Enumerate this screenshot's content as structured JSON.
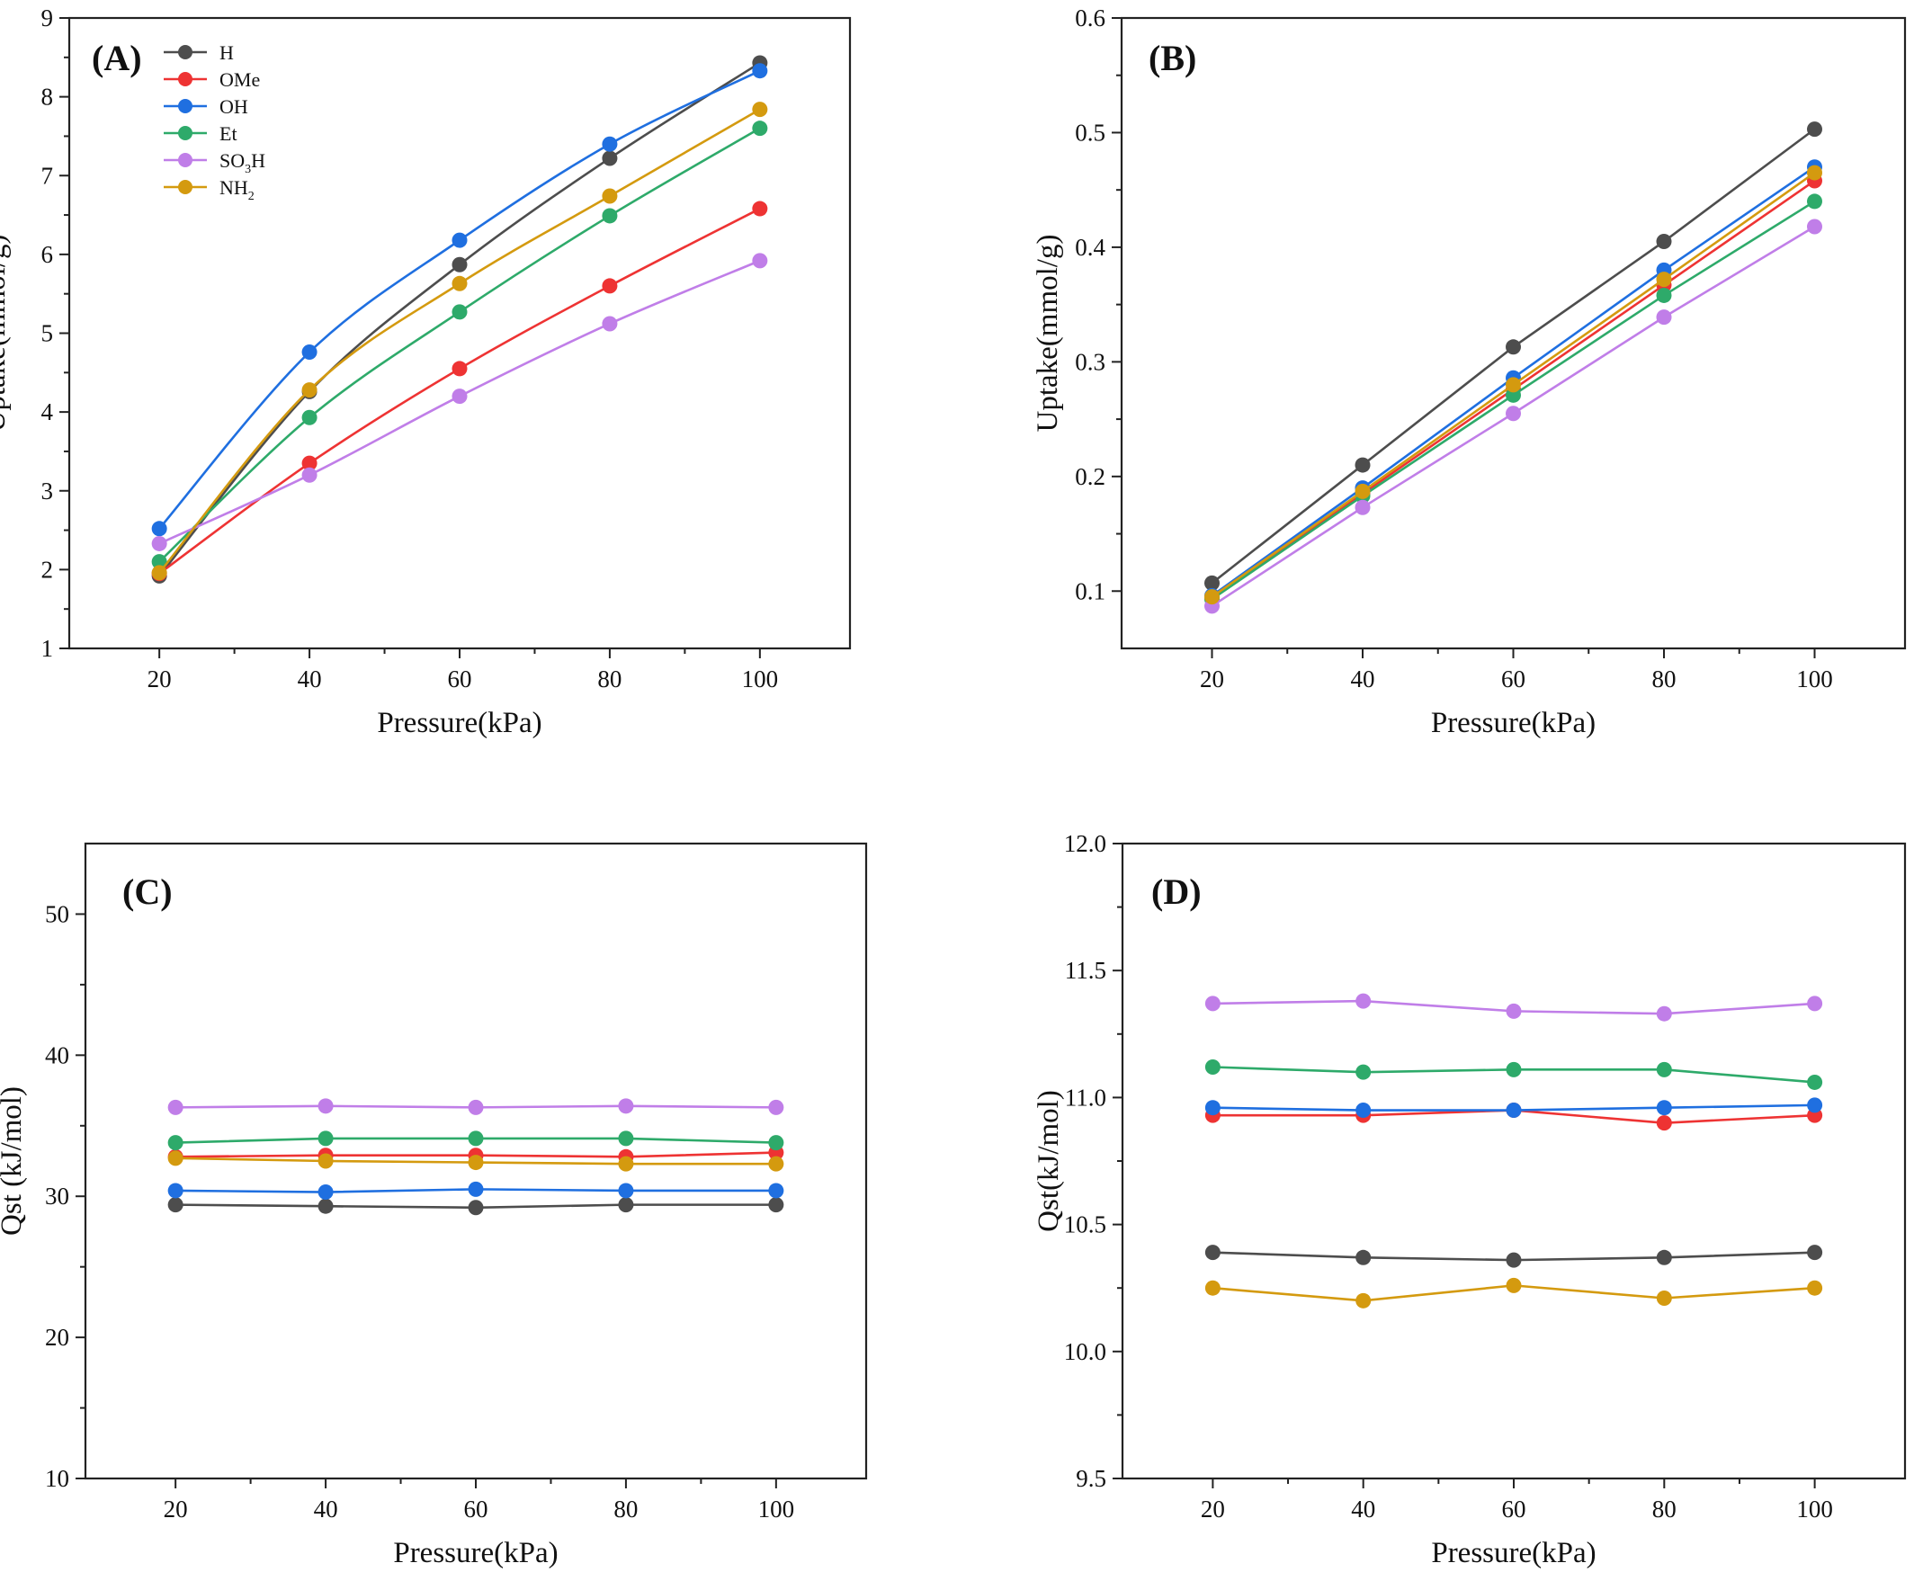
{
  "chart_data": [
    {
      "id": "A",
      "type": "line",
      "panel_label": "(A)",
      "xlabel": "Pressure(kPa)",
      "ylabel": "Uptake(mmol/g)",
      "smooth": true,
      "xlim": [
        8,
        112
      ],
      "ylim": [
        1,
        9
      ],
      "xticks": [
        20,
        40,
        60,
        80,
        100
      ],
      "xtick_labels": [
        "20",
        "40",
        "60",
        "80",
        "100"
      ],
      "yticks": [
        1,
        2,
        3,
        4,
        5,
        6,
        7,
        8,
        9
      ],
      "ytick_labels": [
        "1",
        "2",
        "3",
        "4",
        "5",
        "6",
        "7",
        "8",
        "9"
      ],
      "x": [
        20,
        40,
        60,
        80,
        100
      ],
      "legend": "top-left",
      "series": [
        {
          "name": "H",
          "label_parts": [
            "H"
          ],
          "color": "#4d4d4d",
          "values": [
            1.92,
            4.26,
            5.87,
            7.22,
            8.43
          ]
        },
        {
          "name": "OMe",
          "label_parts": [
            "OMe"
          ],
          "color": "#ee3333",
          "values": [
            1.95,
            3.35,
            4.55,
            5.6,
            6.58
          ]
        },
        {
          "name": "OH",
          "label_parts": [
            "OH"
          ],
          "color": "#1f6fe0",
          "values": [
            2.52,
            4.76,
            6.18,
            7.4,
            8.33
          ]
        },
        {
          "name": "Et",
          "label_parts": [
            "Et"
          ],
          "color": "#2eaa6a",
          "values": [
            2.1,
            3.93,
            5.27,
            6.49,
            7.6
          ]
        },
        {
          "name": "SO3H",
          "label_parts": [
            "SO",
            "3",
            "H"
          ],
          "color": "#c07ee8",
          "values": [
            2.33,
            3.2,
            4.2,
            5.12,
            5.92
          ]
        },
        {
          "name": "NH2",
          "label_parts": [
            "NH",
            "2",
            ""
          ],
          "color": "#d49a0f",
          "values": [
            1.96,
            4.28,
            5.63,
            6.74,
            7.84
          ]
        }
      ]
    },
    {
      "id": "B",
      "type": "line",
      "panel_label": "(B)",
      "xlabel": "Pressure(kPa)",
      "ylabel": "Uptake(mmol/g)",
      "smooth": false,
      "xlim": [
        8,
        112
      ],
      "ylim": [
        0.05,
        0.6
      ],
      "xticks": [
        20,
        40,
        60,
        80,
        100
      ],
      "xtick_labels": [
        "20",
        "40",
        "60",
        "80",
        "100"
      ],
      "yticks": [
        0.1,
        0.2,
        0.3,
        0.4,
        0.5,
        0.6
      ],
      "ytick_labels": [
        "0.1",
        "0.2",
        "0.3",
        "0.4",
        "0.5",
        "0.6"
      ],
      "x": [
        20,
        40,
        60,
        80,
        100
      ],
      "series": [
        {
          "name": "H",
          "color": "#4d4d4d",
          "values": [
            0.107,
            0.21,
            0.313,
            0.405,
            0.503
          ]
        },
        {
          "name": "OMe",
          "color": "#ee3333",
          "values": [
            0.094,
            0.185,
            0.276,
            0.367,
            0.458
          ]
        },
        {
          "name": "OH",
          "color": "#1f6fe0",
          "values": [
            0.096,
            0.19,
            0.286,
            0.38,
            0.47
          ]
        },
        {
          "name": "Et",
          "color": "#2eaa6a",
          "values": [
            0.093,
            0.183,
            0.271,
            0.358,
            0.44
          ]
        },
        {
          "name": "SO3H",
          "color": "#c07ee8",
          "values": [
            0.087,
            0.173,
            0.255,
            0.339,
            0.418
          ]
        },
        {
          "name": "NH2",
          "color": "#d49a0f",
          "values": [
            0.095,
            0.187,
            0.28,
            0.372,
            0.465
          ]
        }
      ]
    },
    {
      "id": "C",
      "type": "line",
      "panel_label": "(C)",
      "xlabel": "Pressure(kPa)",
      "ylabel": "Qst (kJ/mol)",
      "smooth": false,
      "xlim": [
        8,
        112
      ],
      "ylim": [
        10,
        55
      ],
      "xticks": [
        20,
        40,
        60,
        80,
        100
      ],
      "xtick_labels": [
        "20",
        "40",
        "60",
        "80",
        "100"
      ],
      "yticks": [
        10,
        20,
        30,
        40,
        50
      ],
      "ytick_labels": [
        "10",
        "20",
        "30",
        "40",
        "50"
      ],
      "x": [
        20,
        40,
        60,
        80,
        100
      ],
      "series": [
        {
          "name": "H",
          "color": "#4d4d4d",
          "values": [
            29.4,
            29.3,
            29.2,
            29.4,
            29.4
          ]
        },
        {
          "name": "OMe",
          "color": "#ee3333",
          "values": [
            32.8,
            32.9,
            32.9,
            32.8,
            33.1
          ]
        },
        {
          "name": "OH",
          "color": "#1f6fe0",
          "values": [
            30.4,
            30.3,
            30.5,
            30.4,
            30.4
          ]
        },
        {
          "name": "Et",
          "color": "#2eaa6a",
          "values": [
            33.8,
            34.1,
            34.1,
            34.1,
            33.8
          ]
        },
        {
          "name": "SO3H",
          "color": "#c07ee8",
          "values": [
            36.3,
            36.4,
            36.3,
            36.4,
            36.3
          ]
        },
        {
          "name": "NH2",
          "color": "#d49a0f",
          "values": [
            32.7,
            32.5,
            32.4,
            32.3,
            32.3
          ]
        }
      ]
    },
    {
      "id": "D",
      "type": "line",
      "panel_label": "(D)",
      "xlabel": "Pressure(kPa)",
      "ylabel": "Qst(kJ/mol)",
      "smooth": false,
      "xlim": [
        8,
        112
      ],
      "ylim": [
        9.5,
        12.0
      ],
      "xticks": [
        20,
        40,
        60,
        80,
        100
      ],
      "xtick_labels": [
        "20",
        "40",
        "60",
        "80",
        "100"
      ],
      "yticks": [
        9.5,
        10.0,
        10.5,
        11.0,
        11.5,
        12.0
      ],
      "ytick_labels": [
        "9.5",
        "10.0",
        "10.5",
        "11.0",
        "11.5",
        "12.0"
      ],
      "x": [
        20,
        40,
        60,
        80,
        100
      ],
      "series": [
        {
          "name": "H",
          "color": "#4d4d4d",
          "values": [
            10.39,
            10.37,
            10.36,
            10.37,
            10.39
          ]
        },
        {
          "name": "OMe",
          "color": "#ee3333",
          "values": [
            10.93,
            10.93,
            10.95,
            10.9,
            10.93
          ]
        },
        {
          "name": "OH",
          "color": "#1f6fe0",
          "values": [
            10.96,
            10.95,
            10.95,
            10.96,
            10.97
          ]
        },
        {
          "name": "Et",
          "color": "#2eaa6a",
          "values": [
            11.12,
            11.1,
            11.11,
            11.11,
            11.06
          ]
        },
        {
          "name": "SO3H",
          "color": "#c07ee8",
          "values": [
            11.37,
            11.38,
            11.34,
            11.33,
            11.37
          ]
        },
        {
          "name": "NH2",
          "color": "#d49a0f",
          "values": [
            10.25,
            10.2,
            10.26,
            10.21,
            10.25
          ]
        }
      ]
    }
  ]
}
